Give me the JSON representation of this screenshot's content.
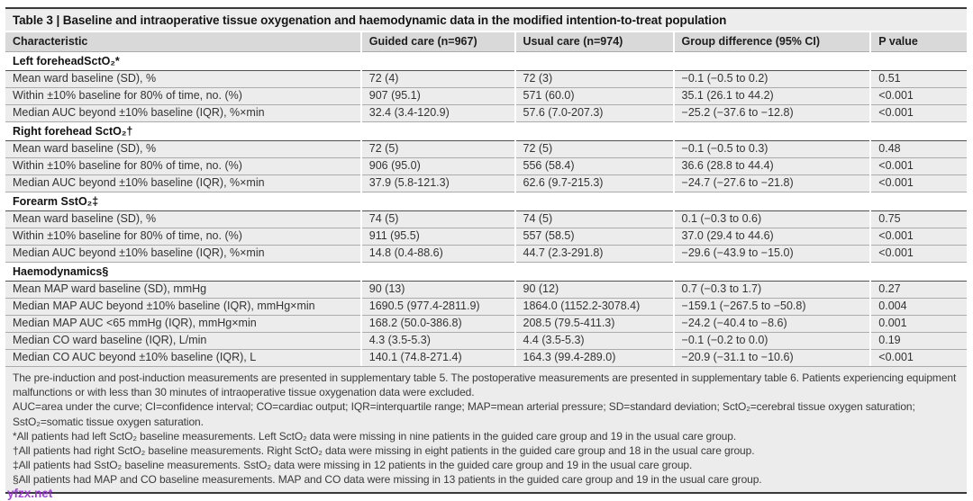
{
  "title": "Table 3 | Baseline and intraoperative tissue oxygenation and haemodynamic data in the modified intention-to-treat population",
  "columns": [
    "Characteristic",
    "Guided care (n=967)",
    "Usual care (n=974)",
    "Group difference (95% CI)",
    "P value"
  ],
  "sections": [
    {
      "header": "Left foreheadSctO₂*",
      "rows": [
        [
          "Mean ward baseline (SD), %",
          "72 (4)",
          "72 (3)",
          "−0.1 (−0.5 to 0.2)",
          "0.51"
        ],
        [
          "Within ±10% baseline for 80% of time, no. (%)",
          "907 (95.1)",
          "571 (60.0)",
          "35.1 (26.1 to 44.2)",
          "<0.001"
        ],
        [
          "Median AUC beyond ±10% baseline (IQR), %×min",
          "32.4 (3.4-120.9)",
          "57.6 (7.0-207.3)",
          "−25.2 (−37.6 to −12.8)",
          "<0.001"
        ]
      ]
    },
    {
      "header": "Right forehead SctO₂†",
      "rows": [
        [
          "Mean ward baseline (SD), %",
          "72 (5)",
          "72 (5)",
          "−0.1 (−0.5 to 0.3)",
          "0.48"
        ],
        [
          "Within ±10% baseline for 80% of time, no. (%)",
          "906 (95.0)",
          "556 (58.4)",
          "36.6 (28.8 to 44.4)",
          "<0.001"
        ],
        [
          "Median AUC beyond ±10% baseline (IQR), %×min",
          "37.9 (5.8-121.3)",
          "62.6 (9.7-215.3)",
          "−24.7 (−27.6 to −21.8)",
          "<0.001"
        ]
      ]
    },
    {
      "header": "Forearm SstO₂‡",
      "rows": [
        [
          "Mean ward baseline (SD), %",
          "74 (5)",
          "74 (5)",
          "0.1 (−0.3 to 0.6)",
          "0.75"
        ],
        [
          "Within ±10% baseline for 80% of time, no. (%)",
          "911 (95.5)",
          "557 (58.5)",
          "37.0 (29.4 to 44.6)",
          "<0.001"
        ],
        [
          "Median AUC beyond ±10% baseline (IQR), %×min",
          "14.8 (0.4-88.6)",
          "44.7 (2.3-291.8)",
          "−29.6 (−43.9 to −15.0)",
          "<0.001"
        ]
      ]
    },
    {
      "header": "Haemodynamics§",
      "rows": [
        [
          "Mean MAP ward baseline (SD), mmHg",
          "90 (13)",
          "90 (12)",
          "0.7 (−0.3 to 1.7)",
          "0.27"
        ],
        [
          "Median MAP AUC beyond ±10% baseline (IQR), mmHg×min",
          "1690.5 (977.4-2811.9)",
          "1864.0 (1152.2-3078.4)",
          "−159.1 (−267.5 to −50.8)",
          "0.004"
        ],
        [
          "Median MAP AUC <65 mmHg (IQR), mmHg×min",
          "168.2 (50.0-386.8)",
          "208.5 (79.5-411.3)",
          "−24.2 (−40.4 to −8.6)",
          "0.001"
        ],
        [
          "Median CO ward baseline (IQR), L/min",
          "4.3 (3.5-5.3)",
          "4.4 (3.5-5.3)",
          "−0.1 (−0.2 to 0.0)",
          "0.19"
        ],
        [
          "Median CO AUC beyond ±10% baseline (IQR), L",
          "140.1 (74.8-271.4)",
          "164.3 (99.4-289.0)",
          "−20.9 (−31.1 to −10.6)",
          "<0.001"
        ]
      ]
    }
  ],
  "footnotes": [
    "The pre-induction and post-induction measurements are presented in supplementary table 5. The postoperative measurements are presented in supplementary table 6. Patients experiencing equipment malfunctions or with less than 30 minutes of intraoperative tissue oxygenation data were excluded.",
    "AUC=area under the curve; CI=confidence interval; CO=cardiac output; IQR=interquartile range; MAP=mean arterial pressure; SD=standard deviation; SctO₂=cerebral tissue oxygen saturation; SstO₂=somatic tissue oxygen saturation.",
    "*All patients had left SctO₂ baseline measurements. Left SctO₂ data were missing in nine patients in the guided care group and 19 in the usual care group.",
    "†All patients had right SctO₂ baseline measurements. Right SctO₂ data were missing in eight patients in the guided care group and 18 in the usual care group.",
    "‡All patients had SstO₂ baseline measurements. SstO₂ data were missing in 12 patients in the guided care group and 19 in the usual care group.",
    "§All patients had MAP and CO baseline measurements. MAP and CO data were missing in 13 patients in the guided care group and 19 in the usual care group."
  ],
  "watermark": "yfzx.net",
  "colors": {
    "rule": "#3a3a3a",
    "title_bg": "#ededed",
    "header_bg": "#d9d9d9",
    "row_bg": "#ececec",
    "watermark": "#9a2fd6"
  }
}
